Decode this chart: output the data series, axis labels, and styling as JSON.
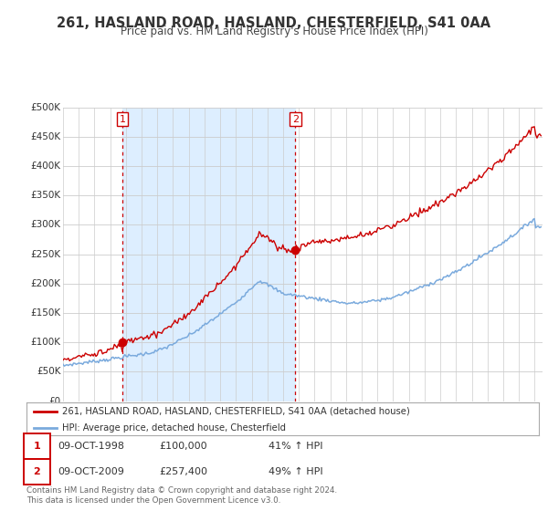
{
  "title": "261, HASLAND ROAD, HASLAND, CHESTERFIELD, S41 0AA",
  "subtitle": "Price paid vs. HM Land Registry's House Price Index (HPI)",
  "red_label": "261, HASLAND ROAD, HASLAND, CHESTERFIELD, S41 0AA (detached house)",
  "blue_label": "HPI: Average price, detached house, Chesterfield",
  "annotation1_date": "09-OCT-1998",
  "annotation1_price": "£100,000",
  "annotation1_hpi": "41% ↑ HPI",
  "annotation2_date": "09-OCT-2009",
  "annotation2_price": "£257,400",
  "annotation2_hpi": "49% ↑ HPI",
  "footer": "Contains HM Land Registry data © Crown copyright and database right 2024.\nThis data is licensed under the Open Government Licence v3.0.",
  "ylim": [
    0,
    500000
  ],
  "yticks": [
    0,
    50000,
    100000,
    150000,
    200000,
    250000,
    300000,
    350000,
    400000,
    450000,
    500000
  ],
  "ytick_labels": [
    "£0",
    "£50K",
    "£100K",
    "£150K",
    "£200K",
    "£250K",
    "£300K",
    "£350K",
    "£400K",
    "£450K",
    "£500K"
  ],
  "red_color": "#cc0000",
  "blue_color": "#7aaadd",
  "point1_x": 1998.77,
  "point1_y": 100000,
  "point2_x": 2009.77,
  "point2_y": 257400,
  "shade_start": 1998.77,
  "shade_end": 2009.77,
  "shade_color": "#ddeeff",
  "bg_color": "#ffffff",
  "grid_color": "#cccccc",
  "xmin": 1995.0,
  "xmax": 2025.5
}
